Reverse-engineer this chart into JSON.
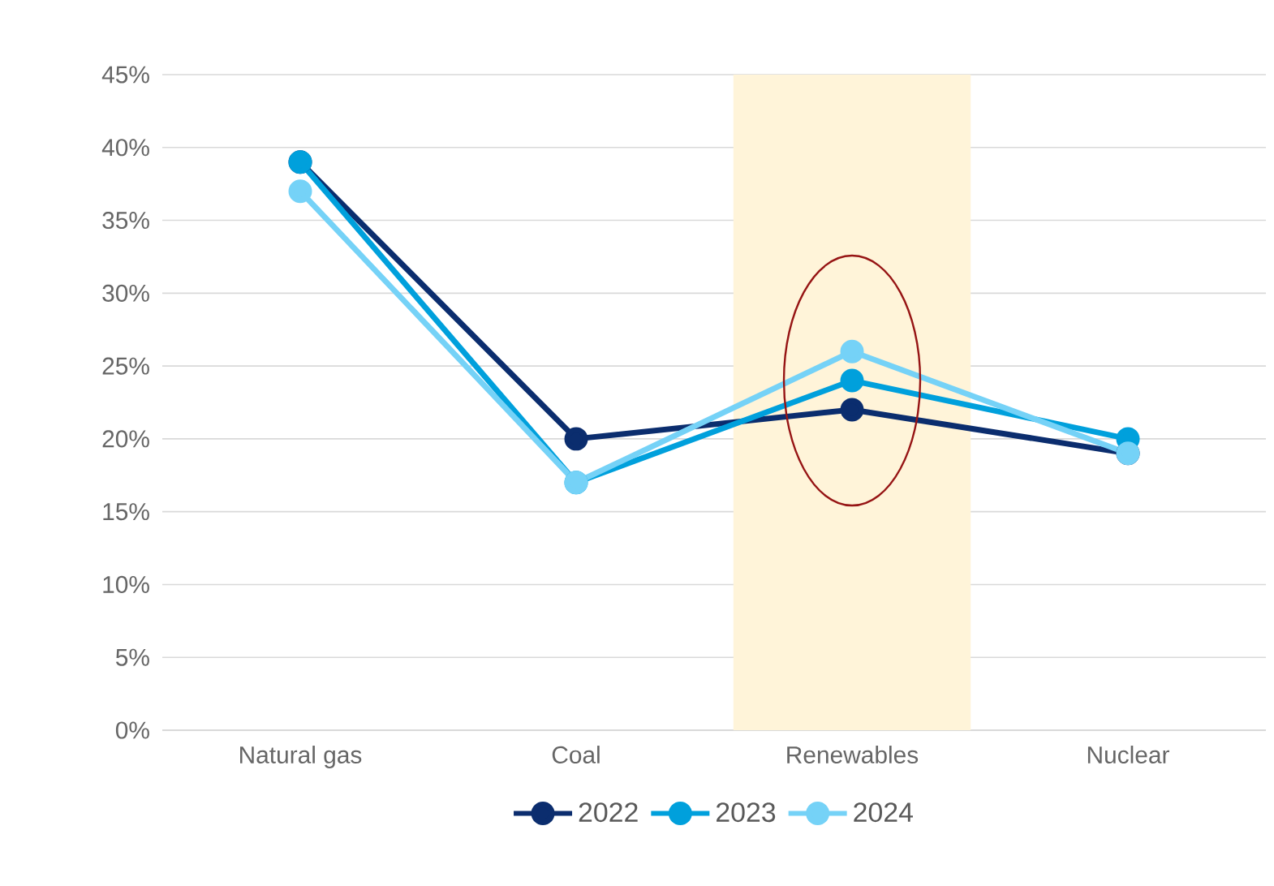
{
  "chart_data": {
    "type": "line",
    "categories": [
      "Natural gas",
      "Coal",
      "Renewables",
      "Nuclear"
    ],
    "series": [
      {
        "name": "2022",
        "color": "#0b2d6e",
        "values": [
          39,
          20,
          22,
          19
        ]
      },
      {
        "name": "2023",
        "color": "#00a0dc",
        "values": [
          39,
          17,
          24,
          20
        ]
      },
      {
        "name": "2024",
        "color": "#75d2f7",
        "values": [
          37,
          17,
          26,
          19
        ]
      }
    ],
    "ylim": [
      0,
      45
    ],
    "yticks": [
      {
        "value": 0,
        "label": "0%"
      },
      {
        "value": 5,
        "label": "5%"
      },
      {
        "value": 10,
        "label": "10%"
      },
      {
        "value": 15,
        "label": "15%"
      },
      {
        "value": 20,
        "label": "20%"
      },
      {
        "value": 25,
        "label": "25%"
      },
      {
        "value": 30,
        "label": "30%"
      },
      {
        "value": 35,
        "label": "35%"
      },
      {
        "value": 40,
        "label": "40%"
      },
      {
        "value": 45,
        "label": "45%"
      }
    ],
    "bands": [
      {
        "axis": "x",
        "from": "Renewables",
        "to": "Renewables",
        "color": "#fff4d9"
      }
    ],
    "grid": "y",
    "legend": "bottom",
    "marker": "circle",
    "line_style": "solid"
  }
}
